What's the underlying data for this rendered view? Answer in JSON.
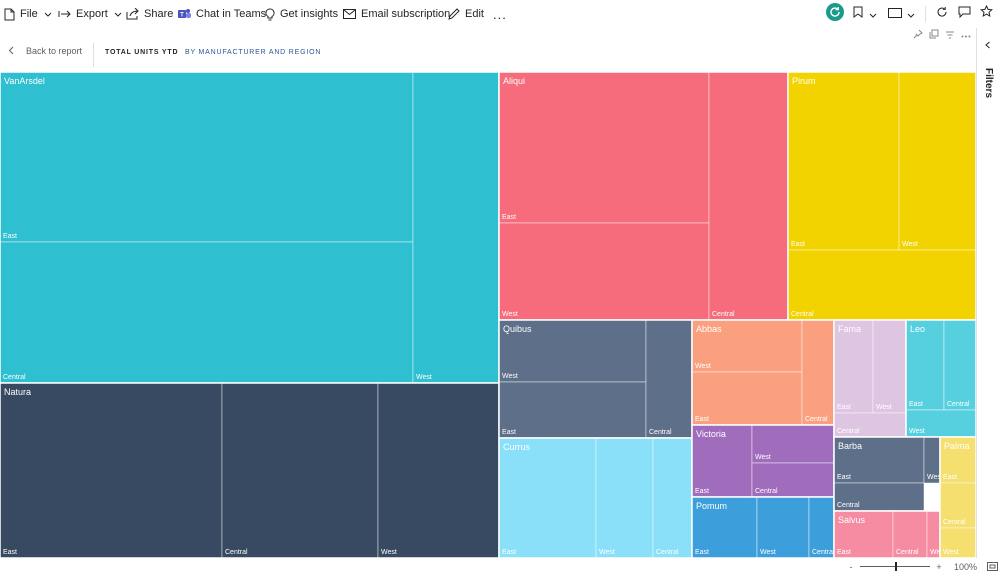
{
  "toolbar": {
    "file_label": "File",
    "export_label": "Export",
    "share_label": "Share",
    "teams_label": "Chat in Teams",
    "insights_label": "Get insights",
    "email_label": "Email subscription",
    "edit_label": "Edit",
    "more_label": "..."
  },
  "subheader": {
    "back_label": "Back to report",
    "title": "TOTAL UNITS YTD",
    "subtitle": "BY MANUFACTURER AND REGION"
  },
  "filters_panel": {
    "label": "Filters"
  },
  "status": {
    "zoom": "100%",
    "minus": "-",
    "plus": "+"
  },
  "colors": {
    "VanArsdel": "#2ebfd1",
    "Natura": "#374a61",
    "Aliqui": "#f66c7c",
    "Pirum": "#f2d300",
    "Quibus": "#5e6f89",
    "Abbas": "#fba07f",
    "Fama": "#dec5e2",
    "Leo": "#56cfdf",
    "Currus": "#8ae0f8",
    "Victoria": "#a06cbc",
    "Barba": "#5e6f89",
    "Pomum": "#3c9edb",
    "Salvus": "#f68ca2",
    "Palma": "#f5df6f"
  },
  "chart_data": {
    "type": "treemap",
    "title": "TOTAL UNITS YTD",
    "subtitle": "BY MANUFACTURER AND REGION",
    "groups": [
      {
        "name": "VanArsdel",
        "children": [
          {
            "name": "Central",
            "value": 41.0
          },
          {
            "name": "East",
            "value": 35.0
          },
          {
            "name": "West",
            "value": 20.0
          }
        ]
      },
      {
        "name": "Natura",
        "children": [
          {
            "name": "East",
            "value": 21.6
          },
          {
            "name": "Central",
            "value": 15.3
          },
          {
            "name": "West",
            "value": 11.9
          }
        ]
      },
      {
        "name": "Aliqui",
        "children": [
          {
            "name": "East",
            "value": 20.5
          },
          {
            "name": "West",
            "value": 13.8
          },
          {
            "name": "Central",
            "value": 12.6
          }
        ]
      },
      {
        "name": "Pirum",
        "children": [
          {
            "name": "East",
            "value": 15.7
          },
          {
            "name": "West",
            "value": 10.7
          },
          {
            "name": "Central",
            "value": 12.6
          }
        ]
      },
      {
        "name": "Quibus",
        "children": [
          {
            "name": "West",
            "value": 8.6
          },
          {
            "name": "East",
            "value": 8.1
          },
          {
            "name": "Central",
            "value": 5.8
          }
        ]
      },
      {
        "name": "Currus",
        "children": [
          {
            "name": "East",
            "value": 8.2
          },
          {
            "name": "West",
            "value": 4.9
          },
          {
            "name": "Central",
            "value": 3.2
          }
        ]
      },
      {
        "name": "Abbas",
        "children": [
          {
            "name": "West",
            "value": 4.7
          },
          {
            "name": "East",
            "value": 4.6
          },
          {
            "name": "Central",
            "value": 2.9
          }
        ]
      },
      {
        "name": "Victoria",
        "children": [
          {
            "name": "East",
            "value": 3.5
          },
          {
            "name": "West",
            "value": 2.4
          },
          {
            "name": "Central",
            "value": 2.0
          }
        ]
      },
      {
        "name": "Pomum",
        "children": [
          {
            "name": "East",
            "value": 3.1
          },
          {
            "name": "West",
            "value": 2.3
          },
          {
            "name": "Central",
            "value": 1.2
          }
        ]
      },
      {
        "name": "Fama",
        "children": [
          {
            "name": "East",
            "value": 2.8
          },
          {
            "name": "West",
            "value": 2.3
          },
          {
            "name": "Central",
            "value": 1.6
          }
        ]
      },
      {
        "name": "Leo",
        "children": [
          {
            "name": "East",
            "value": 2.5
          },
          {
            "name": "Central",
            "value": 2.0
          },
          {
            "name": "West",
            "value": 1.7
          }
        ]
      },
      {
        "name": "Barba",
        "children": [
          {
            "name": "East",
            "value": 3.3
          },
          {
            "name": "Central",
            "value": 1.7
          },
          {
            "name": "West",
            "value": 0.6
          }
        ]
      },
      {
        "name": "Salvus",
        "children": [
          {
            "name": "East",
            "value": 2.1
          },
          {
            "name": "Central",
            "value": 1.3
          },
          {
            "name": "West",
            "value": 0.5
          }
        ]
      },
      {
        "name": "Palma",
        "children": [
          {
            "name": "East",
            "value": 1.2
          },
          {
            "name": "Central",
            "value": 1.6
          },
          {
            "name": "West",
            "value": 1.0
          }
        ]
      }
    ]
  }
}
